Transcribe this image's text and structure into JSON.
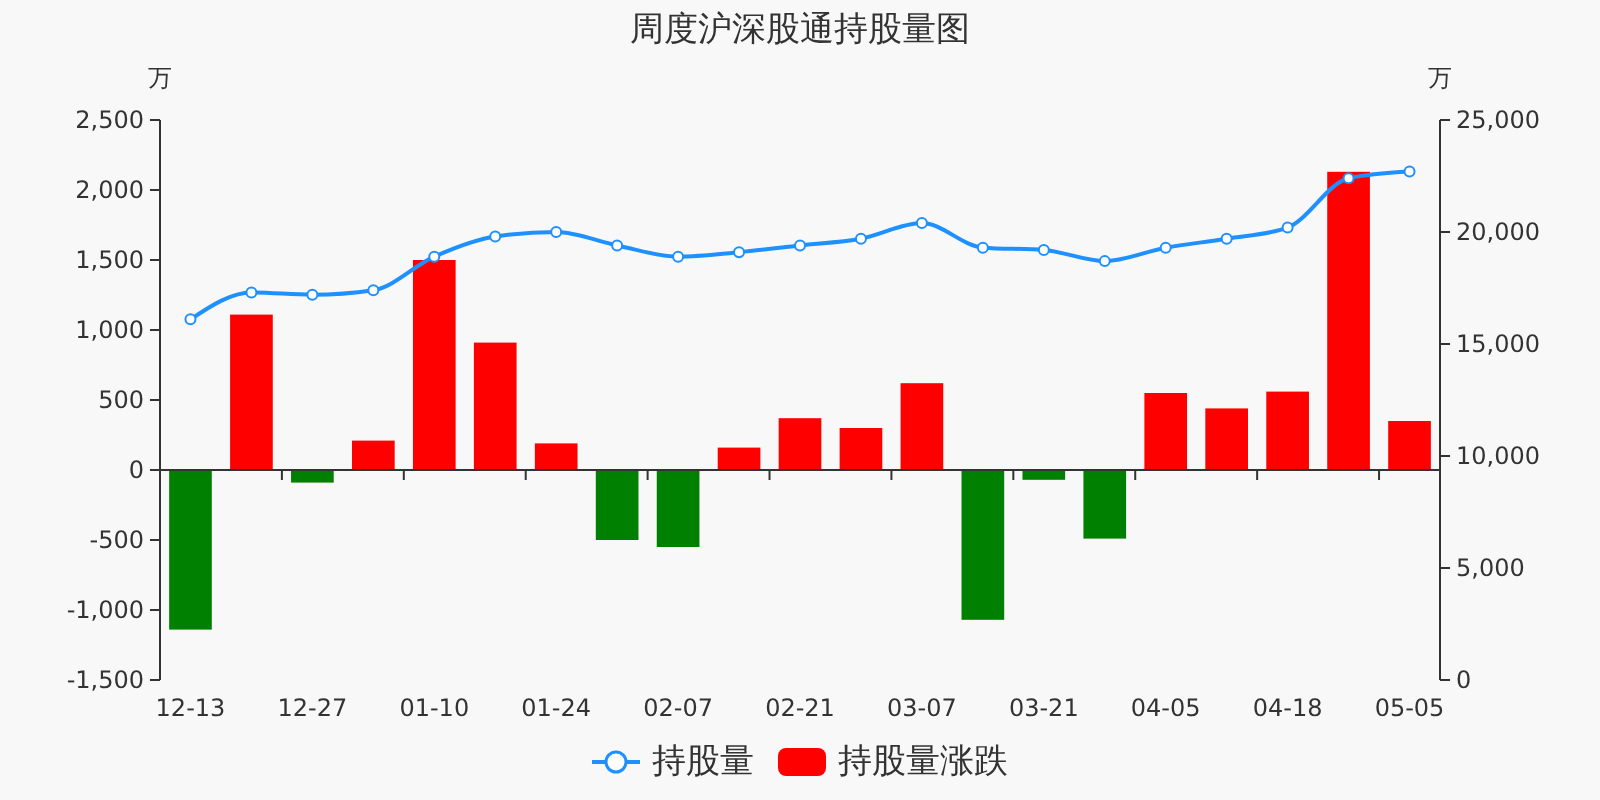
{
  "chart_data": {
    "type": "bar",
    "title": "周度沪深股通持股量图",
    "ylabel": "万",
    "y2label": "万",
    "categories": [
      "12-13",
      null,
      "12-27",
      null,
      "01-10",
      null,
      "01-24",
      null,
      "02-07",
      null,
      "02-21",
      null,
      "03-07",
      null,
      "03-21",
      null,
      "04-05",
      null,
      "04-18",
      null,
      "05-05"
    ],
    "series": [
      {
        "name": "持股量",
        "type": "line",
        "axis": "y2",
        "color": "#1e90ff",
        "values": [
          16100,
          17300,
          17200,
          17400,
          18900,
          19800,
          20000,
          19400,
          18900,
          19100,
          19400,
          19700,
          20400,
          19300,
          19200,
          18700,
          19300,
          19700,
          20200,
          22400,
          22700
        ]
      },
      {
        "name": "持股量涨跌",
        "color": "#ff0000",
        "colors": [
          "#008000",
          "#ff0000",
          "#008000",
          "#ff0000",
          "#ff0000",
          "#ff0000",
          "#ff0000",
          "#008000",
          "#008000",
          "#ff0000",
          "#ff0000",
          "#ff0000",
          "#ff0000",
          "#008000",
          "#008000",
          "#008000",
          "#ff0000",
          "#ff0000",
          "#ff0000",
          "#ff0000",
          "#ff0000"
        ],
        "values": [
          -1140,
          1110,
          -90,
          210,
          1500,
          910,
          190,
          -500,
          -550,
          160,
          370,
          300,
          620,
          -1070,
          -70,
          -490,
          550,
          440,
          560,
          2130,
          350
        ]
      }
    ],
    "ylim": [
      -1500,
      2500
    ],
    "yticks": [
      {
        "value": -1500,
        "label": "-1,500"
      },
      {
        "value": -1000,
        "label": "-1,000"
      },
      -500,
      0,
      500,
      {
        "value": 1000,
        "label": "1,000"
      },
      {
        "value": 1500,
        "label": "1,500"
      },
      {
        "value": 2000,
        "label": "2,000"
      },
      {
        "value": 2500,
        "label": "2,500"
      }
    ],
    "y2lim": [
      0,
      25000
    ],
    "y2ticks": [
      0,
      {
        "value": 5000,
        "label": "5,000"
      },
      {
        "value": 10000,
        "label": "10,000"
      },
      {
        "value": 15000,
        "label": "15,000"
      },
      {
        "value": 20000,
        "label": "20,000"
      },
      {
        "value": 25000,
        "label": "25,000"
      }
    ],
    "legend": "bottom",
    "marker": "circle"
  }
}
